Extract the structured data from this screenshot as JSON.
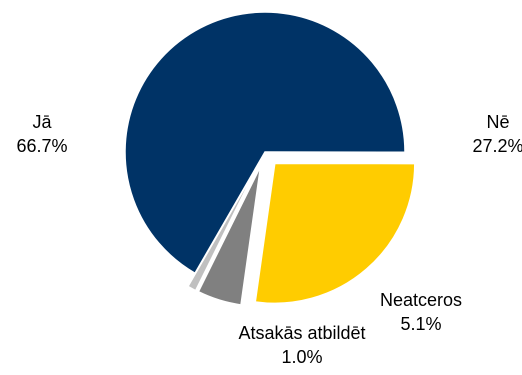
{
  "chart_data": {
    "type": "pie",
    "title": "",
    "slices": [
      {
        "label": "Jā",
        "value": 66.7,
        "value_label": "66.7%",
        "color": "#003366",
        "exploded": false
      },
      {
        "label": "Nē",
        "value": 27.2,
        "value_label": "27.2%",
        "color": "#ffcc00",
        "exploded": true
      },
      {
        "label": "Neatceros",
        "value": 5.1,
        "value_label": "5.1%",
        "color": "#808080",
        "exploded": true
      },
      {
        "label": "Atsakās atbildēt",
        "value": 1.0,
        "value_label": "1.0%",
        "color": "#c0c0c0",
        "exploded": true
      }
    ],
    "legend": "none",
    "data_labels": "outside"
  }
}
